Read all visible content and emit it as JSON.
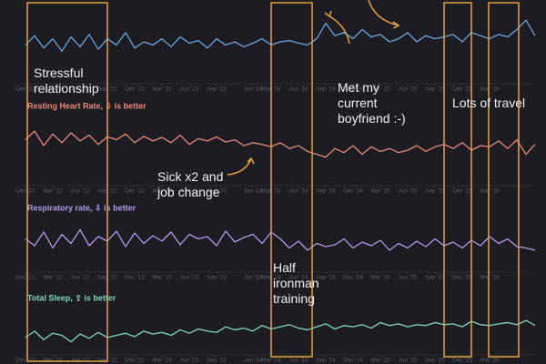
{
  "chart_data": [
    {
      "type": "line",
      "xlim": [
        0,
        56
      ],
      "ylim": [
        0,
        100
      ],
      "xticks": [
        {
          "value": 0,
          "label": "Dec '21"
        },
        {
          "value": 3,
          "label": "Mar '22"
        },
        {
          "value": 6,
          "label": "Jun '22"
        },
        {
          "value": 9,
          "label": "Sep '22"
        },
        {
          "value": 12,
          "label": "Dec '22"
        },
        {
          "value": 15,
          "label": "Mar '23"
        },
        {
          "value": 18,
          "label": "Jun '23"
        },
        {
          "value": 21,
          "label": "Sep '23"
        },
        {
          "value": 25,
          "label": "Jan '24"
        },
        {
          "value": 27,
          "label": "Mar '24"
        },
        {
          "value": 30,
          "label": "Jun '24"
        },
        {
          "value": 33,
          "label": "Sep '24"
        },
        {
          "value": 36,
          "label": "Dec '24"
        },
        {
          "value": 39,
          "label": "Mar '25"
        },
        {
          "value": 42,
          "label": "Jun '25"
        },
        {
          "value": 45,
          "label": "Sep '25"
        },
        {
          "value": 48,
          "label": "Dec '25"
        },
        {
          "value": 51,
          "label": "Mar '26"
        }
      ],
      "series": [
        {
          "color": "#6aa6e0",
          "values": [
            45,
            60,
            40,
            55,
            35,
            58,
            42,
            62,
            38,
            55,
            45,
            65,
            40,
            50,
            45,
            55,
            42,
            58,
            48,
            52,
            40,
            55,
            45,
            50,
            42,
            48,
            55,
            45,
            50,
            52,
            48,
            45,
            55,
            80,
            60,
            65,
            55,
            70,
            58,
            62,
            50,
            55,
            65,
            50,
            60,
            55,
            58,
            62,
            50,
            65,
            60,
            55,
            62,
            58,
            70,
            85,
            60
          ]
        }
      ]
    },
    {
      "type": "line",
      "title": "Resting Heart Rate, ⇩ is better",
      "title_color": "#e8897a",
      "xlim": [
        0,
        56
      ],
      "ylim": [
        0,
        100
      ],
      "xticks": [
        {
          "value": 0,
          "label": "Dec '21"
        },
        {
          "value": 3,
          "label": "Mar '22"
        },
        {
          "value": 6,
          "label": "Jun '22"
        },
        {
          "value": 9,
          "label": "Sep '22"
        },
        {
          "value": 12,
          "label": "Dec '22"
        },
        {
          "value": 15,
          "label": "Mar '23"
        },
        {
          "value": 18,
          "label": "Jun '23"
        },
        {
          "value": 21,
          "label": "Sep '23"
        },
        {
          "value": 25,
          "label": "Jan '24"
        },
        {
          "value": 27,
          "label": "Mar '24"
        },
        {
          "value": 30,
          "label": "Jun '24"
        },
        {
          "value": 33,
          "label": "Sep '24"
        },
        {
          "value": 36,
          "label": "Dec '24"
        },
        {
          "value": 39,
          "label": "Mar '25"
        },
        {
          "value": 42,
          "label": "Jun '25"
        },
        {
          "value": 45,
          "label": "Sep '25"
        },
        {
          "value": 48,
          "label": "Dec '25"
        },
        {
          "value": 51,
          "label": "Mar '26"
        }
      ],
      "series": [
        {
          "color": "#e8897a",
          "values": [
            60,
            75,
            50,
            70,
            55,
            72,
            58,
            68,
            52,
            65,
            60,
            70,
            55,
            66,
            58,
            64,
            55,
            68,
            52,
            62,
            58,
            65,
            56,
            60,
            50,
            55,
            52,
            48,
            55,
            45,
            50,
            40,
            35,
            30,
            45,
            38,
            50,
            35,
            48,
            40,
            45,
            38,
            42,
            50,
            40,
            48,
            52,
            45,
            55,
            42,
            50,
            48,
            58,
            45,
            60,
            35,
            52
          ]
        }
      ]
    },
    {
      "type": "line",
      "title": "Respiratory rate, ⇩ is better",
      "title_color": "#b39ae8",
      "xlim": [
        0,
        56
      ],
      "ylim": [
        0,
        100
      ],
      "xticks": [
        {
          "value": 0,
          "label": "Dec '21"
        },
        {
          "value": 3,
          "label": "Mar '22"
        },
        {
          "value": 6,
          "label": "Jun '22"
        },
        {
          "value": 9,
          "label": "Sep '22"
        },
        {
          "value": 12,
          "label": "Dec '22"
        },
        {
          "value": 15,
          "label": "Mar '23"
        },
        {
          "value": 18,
          "label": "Jun '23"
        },
        {
          "value": 21,
          "label": "Sep '23"
        },
        {
          "value": 25,
          "label": "Jan '24"
        },
        {
          "value": 27,
          "label": "Mar '24"
        },
        {
          "value": 30,
          "label": "Jun '24"
        },
        {
          "value": 33,
          "label": "Sep '24"
        },
        {
          "value": 36,
          "label": "Dec '24"
        },
        {
          "value": 39,
          "label": "Mar '25"
        },
        {
          "value": 42,
          "label": "Jun '25"
        },
        {
          "value": 45,
          "label": "Sep '25"
        },
        {
          "value": 48,
          "label": "Dec '25"
        },
        {
          "value": 51,
          "label": "Mar '26"
        }
      ],
      "series": [
        {
          "color": "#b39ae8",
          "values": [
            55,
            40,
            70,
            35,
            65,
            45,
            75,
            40,
            60,
            50,
            72,
            38,
            68,
            45,
            62,
            50,
            70,
            42,
            65,
            55,
            60,
            40,
            72,
            48,
            58,
            65,
            45,
            70,
            55,
            35,
            50,
            30,
            45,
            38,
            42,
            55,
            35,
            48,
            40,
            52,
            30,
            45,
            35,
            50,
            38,
            55,
            40,
            48,
            35,
            52,
            40,
            60,
            45,
            55,
            38,
            35,
            30
          ]
        }
      ]
    },
    {
      "type": "line",
      "title": "Total Sleep, ⇧ is better",
      "title_color": "#7fd6c4",
      "xlim": [
        0,
        56
      ],
      "ylim": [
        0,
        100
      ],
      "xticks": [
        {
          "value": 0,
          "label": "Dec '21"
        },
        {
          "value": 3,
          "label": "Mar '22"
        },
        {
          "value": 6,
          "label": "Jun '22"
        },
        {
          "value": 9,
          "label": "Sep '22"
        },
        {
          "value": 12,
          "label": "Dec '22"
        },
        {
          "value": 15,
          "label": "Mar '23"
        },
        {
          "value": 18,
          "label": "Jun '23"
        },
        {
          "value": 21,
          "label": "Sep '23"
        },
        {
          "value": 25,
          "label": "Jan '24"
        },
        {
          "value": 27,
          "label": "Mar '24"
        },
        {
          "value": 30,
          "label": "Jun '24"
        },
        {
          "value": 33,
          "label": "Sep '24"
        },
        {
          "value": 36,
          "label": "Dec '24"
        },
        {
          "value": 39,
          "label": "Mar '25"
        },
        {
          "value": 42,
          "label": "Jun '25"
        },
        {
          "value": 45,
          "label": "Sep '25"
        },
        {
          "value": 48,
          "label": "Dec '25"
        },
        {
          "value": 51,
          "label": "Mar '26"
        }
      ],
      "series": [
        {
          "color": "#7fd6c4",
          "values": [
            30,
            45,
            25,
            40,
            35,
            20,
            38,
            28,
            42,
            30,
            35,
            40,
            32,
            45,
            38,
            42,
            35,
            48,
            40,
            50,
            45,
            42,
            55,
            48,
            52,
            45,
            58,
            50,
            55,
            60,
            52,
            48,
            55,
            62,
            50,
            58,
            55,
            60,
            52,
            65,
            58,
            62,
            55,
            60,
            58,
            65,
            60,
            62,
            55,
            68,
            60,
            58,
            62,
            65,
            60,
            70,
            58
          ]
        }
      ]
    }
  ],
  "annotations": [
    {
      "lines": [
        "Stressful",
        "relationship"
      ]
    },
    {
      "lines": [
        "Met my",
        "current",
        "boyfriend :-)"
      ]
    },
    {
      "lines": [
        "Sick x2 and",
        "job change"
      ]
    },
    {
      "lines": [
        "Lots of travel"
      ]
    },
    {
      "lines": [
        "Half",
        "ironman",
        "training"
      ]
    }
  ]
}
